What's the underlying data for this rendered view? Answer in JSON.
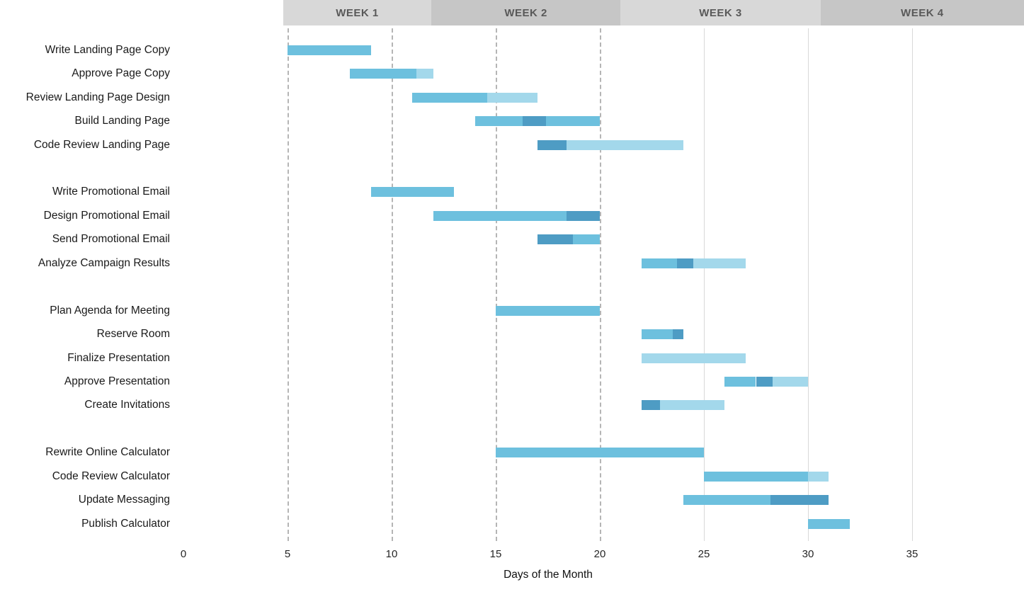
{
  "week_header": {
    "text_color": "#595959",
    "items": [
      {
        "label": "WEEK 1",
        "start_day": 4.8,
        "end_day": 11.9,
        "color": "#d8d8d8"
      },
      {
        "label": "WEEK 2",
        "start_day": 11.9,
        "end_day": 21.0,
        "color": "#c6c6c6"
      },
      {
        "label": "WEEK 3",
        "start_day": 21.0,
        "end_day": 30.6,
        "color": "#d8d8d8"
      },
      {
        "label": "WEEK 4",
        "start_day": 30.6,
        "end_day": 40.4,
        "color": "#c6c6c6"
      }
    ]
  },
  "chart_data": {
    "type": "gantt",
    "title": "",
    "xlabel": "Days of the Month",
    "x_ticks": [
      0,
      5,
      10,
      15,
      20,
      25,
      30,
      35
    ],
    "xlim": [
      0,
      40.4
    ],
    "legend": "none",
    "gridlines": [
      {
        "day": 5,
        "style": "dashed"
      },
      {
        "day": 10,
        "style": "dashed"
      },
      {
        "day": 15,
        "style": "dashed"
      },
      {
        "day": 20,
        "style": "dashed"
      },
      {
        "day": 25,
        "style": "solid"
      },
      {
        "day": 30,
        "style": "solid"
      },
      {
        "day": 35,
        "style": "solid"
      }
    ],
    "colors": {
      "base": "#6dc0de",
      "light": "#a3d8eb",
      "dark": "#4e9cc4"
    },
    "tasks": [
      {
        "name": "Write Landing Page Copy",
        "row": 0,
        "start": 5,
        "end": 9,
        "segments": [
          {
            "from": 5,
            "to": 9,
            "tone": "base"
          }
        ]
      },
      {
        "name": "Approve Page Copy",
        "row": 1,
        "start": 8,
        "end": 12,
        "segments": [
          {
            "from": 8,
            "to": 11.2,
            "tone": "base"
          },
          {
            "from": 11.2,
            "to": 12,
            "tone": "light"
          }
        ]
      },
      {
        "name": "Review Landing Page Design",
        "row": 2,
        "start": 11,
        "end": 17,
        "segments": [
          {
            "from": 11,
            "to": 14.6,
            "tone": "base"
          },
          {
            "from": 14.6,
            "to": 17,
            "tone": "light"
          }
        ]
      },
      {
        "name": "Build Landing Page",
        "row": 3,
        "start": 14,
        "end": 20,
        "segments": [
          {
            "from": 14,
            "to": 16.3,
            "tone": "base"
          },
          {
            "from": 16.3,
            "to": 17.4,
            "tone": "dark"
          },
          {
            "from": 17.4,
            "to": 20,
            "tone": "base"
          }
        ]
      },
      {
        "name": "Code Review Landing Page",
        "row": 4,
        "start": 17,
        "end": 24,
        "segments": [
          {
            "from": 17,
            "to": 18.4,
            "tone": "dark"
          },
          {
            "from": 18.4,
            "to": 24,
            "tone": "light"
          }
        ]
      },
      {
        "name": "Write Promotional Email",
        "row": 6,
        "start": 9,
        "end": 13,
        "segments": [
          {
            "from": 9,
            "to": 13,
            "tone": "base"
          }
        ]
      },
      {
        "name": "Design Promotional Email",
        "row": 7,
        "start": 12,
        "end": 20,
        "segments": [
          {
            "from": 12,
            "to": 18.4,
            "tone": "base"
          },
          {
            "from": 18.4,
            "to": 20,
            "tone": "dark"
          }
        ]
      },
      {
        "name": "Send Promotional Email",
        "row": 8,
        "start": 17,
        "end": 20,
        "segments": [
          {
            "from": 17,
            "to": 18.7,
            "tone": "dark"
          },
          {
            "from": 18.7,
            "to": 20,
            "tone": "base"
          }
        ]
      },
      {
        "name": "Analyze Campaign Results",
        "row": 9,
        "start": 22,
        "end": 27,
        "segments": [
          {
            "from": 22,
            "to": 23.7,
            "tone": "base"
          },
          {
            "from": 23.7,
            "to": 24.5,
            "tone": "dark"
          },
          {
            "from": 24.5,
            "to": 27,
            "tone": "light"
          }
        ]
      },
      {
        "name": "Plan Agenda for Meeting",
        "row": 11,
        "start": 15,
        "end": 20,
        "segments": [
          {
            "from": 15,
            "to": 20,
            "tone": "base"
          }
        ]
      },
      {
        "name": "Reserve Room",
        "row": 12,
        "start": 22,
        "end": 24,
        "segments": [
          {
            "from": 22,
            "to": 23.5,
            "tone": "base"
          },
          {
            "from": 23.5,
            "to": 24,
            "tone": "dark"
          }
        ]
      },
      {
        "name": "Finalize Presentation",
        "row": 13,
        "start": 22,
        "end": 27,
        "segments": [
          {
            "from": 22,
            "to": 27,
            "tone": "light"
          }
        ]
      },
      {
        "name": "Approve Presentation",
        "row": 14,
        "start": 26,
        "end": 30,
        "segments": [
          {
            "from": 26,
            "to": 27.5,
            "tone": "base"
          },
          {
            "from": 27.5,
            "to": 28.3,
            "tone": "dark"
          },
          {
            "from": 28.3,
            "to": 30,
            "tone": "light"
          }
        ]
      },
      {
        "name": "Create Invitations",
        "row": 15,
        "start": 22,
        "end": 26,
        "segments": [
          {
            "from": 22,
            "to": 22.9,
            "tone": "dark"
          },
          {
            "from": 22.9,
            "to": 26,
            "tone": "light"
          }
        ]
      },
      {
        "name": "Rewrite Online Calculator",
        "row": 17,
        "start": 15,
        "end": 25,
        "segments": [
          {
            "from": 15,
            "to": 25,
            "tone": "base"
          }
        ]
      },
      {
        "name": "Code Review Calculator",
        "row": 18,
        "start": 25,
        "end": 31,
        "segments": [
          {
            "from": 25,
            "to": 30,
            "tone": "base"
          },
          {
            "from": 30,
            "to": 31,
            "tone": "light"
          }
        ]
      },
      {
        "name": "Update Messaging",
        "row": 19,
        "start": 24,
        "end": 31,
        "segments": [
          {
            "from": 24,
            "to": 28.2,
            "tone": "base"
          },
          {
            "from": 28.2,
            "to": 31,
            "tone": "dark"
          }
        ]
      },
      {
        "name": "Publish Calculator",
        "row": 20,
        "start": 30,
        "end": 32,
        "segments": [
          {
            "from": 30,
            "to": 32,
            "tone": "base"
          }
        ]
      }
    ]
  }
}
